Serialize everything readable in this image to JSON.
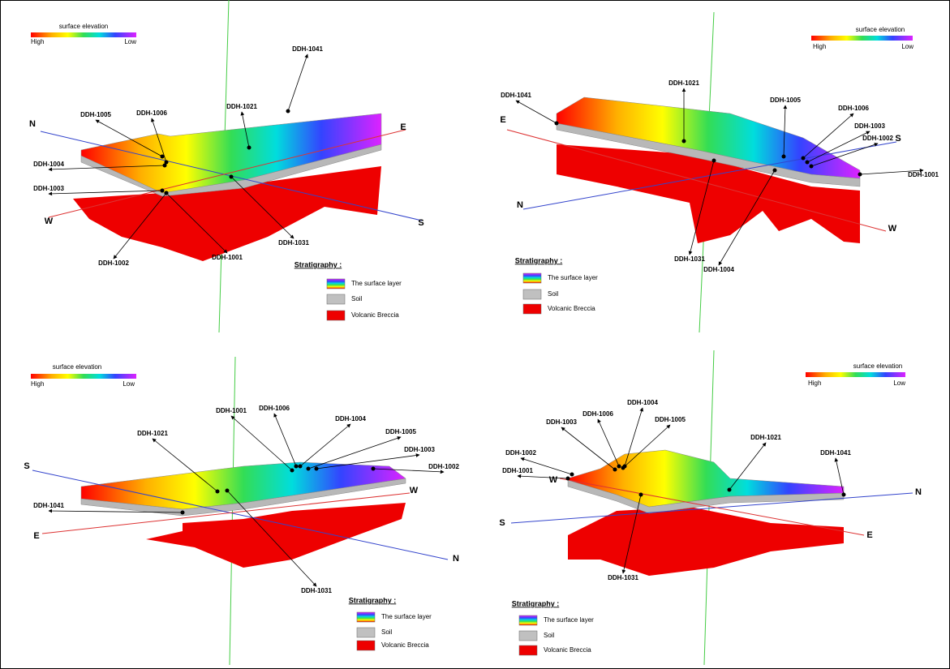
{
  "panels": [
    {
      "colorbar": {
        "title": "surface elevation",
        "high": "High",
        "low": "Low"
      },
      "directions": [
        "N",
        "E",
        "W",
        "S"
      ],
      "boreholes": [
        "DDH-1041",
        "DDH-1021",
        "DDH-1005",
        "DDH-1006",
        "DDH-1004",
        "DDH-1003",
        "DDH-1002",
        "DDH-1001",
        "DDH-1031"
      ],
      "legend": {
        "title": "Stratigraphy :",
        "items": [
          "The surface layer",
          "Soil",
          "Volcanic Breccia"
        ]
      }
    },
    {
      "colorbar": {
        "title": "surface elevation",
        "high": "High",
        "low": "Low"
      },
      "directions": [
        "E",
        "S",
        "N",
        "W"
      ],
      "boreholes": [
        "DDH-1041",
        "DDH-1021",
        "DDH-1005",
        "DDH-1006",
        "DDH-1003",
        "DDH-1002",
        "DDH-1001",
        "DDH-1031",
        "DDH-1004"
      ],
      "legend": {
        "title": "Stratigraphy :",
        "items": [
          "The surface layer",
          "Soil",
          "Volcanic Breccia"
        ]
      }
    },
    {
      "colorbar": {
        "title": "surface elevation",
        "high": "High",
        "low": "Low"
      },
      "directions": [
        "S",
        "W",
        "E",
        "N"
      ],
      "boreholes": [
        "DDH-1001",
        "DDH-1006",
        "DDH-1004",
        "DDH-1005",
        "DDH-1003",
        "DDH-1002",
        "DDH-1021",
        "DDH-1041",
        "DDH-1031"
      ],
      "legend": {
        "title": "Stratigraphy :",
        "items": [
          "The surface layer",
          "Soil",
          "Volcanic Breccia"
        ]
      }
    },
    {
      "colorbar": {
        "title": "surface elevation",
        "high": "High",
        "low": "Low"
      },
      "directions": [
        "W",
        "N",
        "S",
        "E"
      ],
      "boreholes": [
        "DDH-1004",
        "DDH-1006",
        "DDH-1005",
        "DDH-1003",
        "DDH-1002",
        "DDH-1001",
        "DDH-1021",
        "DDH-1041",
        "DDH-1031"
      ],
      "legend": {
        "title": "Stratigraphy :",
        "items": [
          "The surface layer",
          "Soil",
          "Volcanic Breccia"
        ]
      }
    }
  ]
}
